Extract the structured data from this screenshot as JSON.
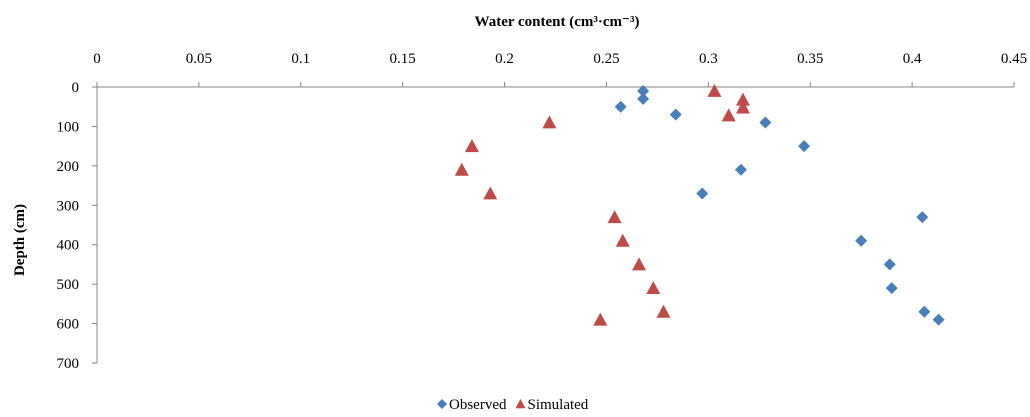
{
  "chart_data": {
    "type": "scatter",
    "title": "",
    "xlabel": "Water content (cm³·cm⁻³)",
    "ylabel": "Depth (cm)",
    "xlim": [
      0,
      0.45
    ],
    "ylim": [
      0,
      700
    ],
    "x_axis_position": "top",
    "y_axis_reversed": true,
    "grid": false,
    "legend_position": "bottom",
    "x_ticks": [
      "0",
      "0.05",
      "0.1",
      "0.15",
      "0.2",
      "0.25",
      "0.3",
      "0.35",
      "0.4",
      "0.45"
    ],
    "y_ticks": [
      "0",
      "100",
      "200",
      "300",
      "400",
      "500",
      "600",
      "700"
    ],
    "series": [
      {
        "name": "Observed",
        "marker": "diamond",
        "color": "#4a7ebb",
        "points": [
          {
            "x": 0.268,
            "y": 10
          },
          {
            "x": 0.268,
            "y": 30
          },
          {
            "x": 0.257,
            "y": 50
          },
          {
            "x": 0.284,
            "y": 70
          },
          {
            "x": 0.328,
            "y": 90
          },
          {
            "x": 0.347,
            "y": 150
          },
          {
            "x": 0.316,
            "y": 210
          },
          {
            "x": 0.297,
            "y": 270
          },
          {
            "x": 0.405,
            "y": 330
          },
          {
            "x": 0.375,
            "y": 390
          },
          {
            "x": 0.389,
            "y": 450
          },
          {
            "x": 0.39,
            "y": 510
          },
          {
            "x": 0.406,
            "y": 570
          },
          {
            "x": 0.413,
            "y": 590
          }
        ]
      },
      {
        "name": "Simulated",
        "marker": "triangle",
        "color": "#be4b48",
        "points": [
          {
            "x": 0.303,
            "y": 10
          },
          {
            "x": 0.317,
            "y": 32
          },
          {
            "x": 0.317,
            "y": 52
          },
          {
            "x": 0.31,
            "y": 72
          },
          {
            "x": 0.222,
            "y": 90
          },
          {
            "x": 0.184,
            "y": 150
          },
          {
            "x": 0.179,
            "y": 210
          },
          {
            "x": 0.193,
            "y": 270
          },
          {
            "x": 0.254,
            "y": 330
          },
          {
            "x": 0.258,
            "y": 390
          },
          {
            "x": 0.266,
            "y": 450
          },
          {
            "x": 0.273,
            "y": 510
          },
          {
            "x": 0.278,
            "y": 570
          },
          {
            "x": 0.247,
            "y": 590
          }
        ]
      }
    ]
  }
}
